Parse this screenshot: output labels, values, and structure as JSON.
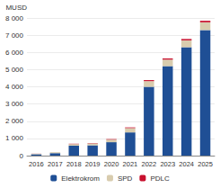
{
  "chart_data": {
    "type": "bar",
    "stacked": true,
    "y_label": "MUSD",
    "categories": [
      "2016",
      "2017",
      "2018",
      "2019",
      "2020",
      "2021",
      "2022",
      "2023",
      "2024",
      "2025"
    ],
    "series": [
      {
        "name": "Elektrokrom",
        "color": "#1f4f95",
        "values": [
          80,
          150,
          580,
          600,
          780,
          1350,
          4000,
          5200,
          6300,
          7300
        ]
      },
      {
        "name": "SPD",
        "color": "#d8ccae",
        "values": [
          30,
          40,
          90,
          110,
          150,
          250,
          330,
          380,
          400,
          450
        ]
      },
      {
        "name": "PDLC",
        "color": "#c8102e",
        "values": [
          5,
          10,
          20,
          20,
          30,
          40,
          60,
          70,
          80,
          90
        ]
      }
    ],
    "ylim": [
      0,
      8000
    ],
    "yticks": [
      0,
      {
        "value": 1000,
        "label": "1 000"
      },
      {
        "value": 2000,
        "label": "2 000"
      },
      {
        "value": 3000,
        "label": "3 000"
      },
      {
        "value": 4000,
        "label": "4 000"
      },
      {
        "value": 5000,
        "label": "5 000"
      },
      {
        "value": 6000,
        "label": "6 000"
      },
      {
        "value": 7000,
        "label": "7 000"
      },
      {
        "value": 8000,
        "label": "8 000"
      }
    ],
    "grid": true,
    "legend": "bottom"
  }
}
